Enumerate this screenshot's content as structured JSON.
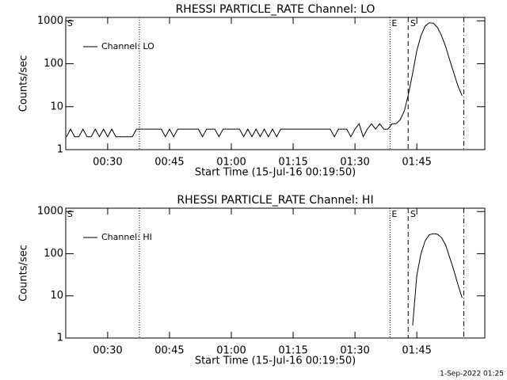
{
  "chart_data": [
    {
      "type": "line",
      "title": "RHESSI PARTICLE_RATE Channel: LO",
      "xlabel": "Start Time (15-Jul-16 00:19:50)",
      "ylabel": "Counts/sec",
      "log_y": true,
      "legend": "upper left",
      "xlim": [
        19.83,
        121.5
      ],
      "ylim": [
        1,
        1200
      ],
      "xticks": [
        {
          "value": 30,
          "label": "00:30"
        },
        {
          "value": 45,
          "label": "00:45"
        },
        {
          "value": 60,
          "label": "01:00"
        },
        {
          "value": 75,
          "label": "01:15"
        },
        {
          "value": 90,
          "label": "01:30"
        },
        {
          "value": 105,
          "label": "01:45"
        }
      ],
      "yticks": [
        1,
        10,
        100,
        1000
      ],
      "event_lines": [
        {
          "x": 37.7,
          "style": "dotted"
        },
        {
          "x": 98.5,
          "style": "dotted"
        },
        {
          "x": 102.9,
          "style": "dashed"
        },
        {
          "x": 116.4,
          "style": "dashdot"
        }
      ],
      "event_labels": [
        {
          "x": 20.2,
          "text": "S"
        },
        {
          "x": 98.9,
          "text": "E"
        },
        {
          "x": 103.4,
          "text": "S"
        }
      ],
      "series": [
        {
          "name": "Channel: LO",
          "color": "#000000",
          "x": [
            20,
            21,
            22,
            23,
            24,
            25,
            26,
            27,
            28,
            29,
            30,
            31,
            32,
            33,
            34,
            35,
            36,
            37,
            38,
            39,
            40,
            41,
            42,
            43,
            44,
            45,
            46,
            47,
            48,
            49,
            50,
            51,
            52,
            53,
            54,
            55,
            56,
            57,
            58,
            59,
            60,
            61,
            62,
            63,
            64,
            65,
            66,
            67,
            68,
            69,
            70,
            71,
            72,
            73,
            74,
            75,
            76,
            77,
            78,
            79,
            80,
            81,
            82,
            83,
            84,
            85,
            86,
            87,
            88,
            89,
            90,
            91,
            92,
            93,
            94,
            95,
            96,
            97,
            98,
            99,
            100,
            101,
            102,
            103,
            104,
            105,
            106,
            107,
            108,
            109,
            110,
            111,
            112,
            113,
            114,
            115,
            116
          ],
          "values": [
            2,
            3,
            2,
            2,
            3,
            2,
            2,
            3,
            2,
            3,
            2,
            3,
            2,
            2,
            2,
            2,
            2,
            3,
            3,
            3,
            3,
            3,
            3,
            3,
            2,
            3,
            2,
            3,
            3,
            3,
            3,
            3,
            3,
            2,
            3,
            3,
            3,
            2,
            3,
            3,
            3,
            3,
            3,
            2,
            3,
            2,
            3,
            2,
            3,
            2,
            3,
            2,
            3,
            3,
            3,
            3,
            3,
            3,
            3,
            3,
            3,
            3,
            3,
            3,
            3,
            2,
            3,
            3,
            3,
            2,
            3,
            4,
            2,
            3,
            4,
            3,
            4,
            3,
            3,
            4,
            4,
            5,
            8,
            20,
            60,
            200,
            450,
            750,
            900,
            880,
            700,
            450,
            250,
            120,
            60,
            30,
            18
          ]
        }
      ]
    },
    {
      "type": "line",
      "title": "RHESSI PARTICLE_RATE Channel: HI",
      "xlabel": "Start Time (15-Jul-16 00:19:50)",
      "ylabel": "Counts/sec",
      "log_y": true,
      "legend": "upper left",
      "xlim": [
        19.83,
        121.5
      ],
      "ylim": [
        1,
        1200
      ],
      "xticks": [
        {
          "value": 30,
          "label": "00:30"
        },
        {
          "value": 45,
          "label": "00:45"
        },
        {
          "value": 60,
          "label": "01:00"
        },
        {
          "value": 75,
          "label": "01:15"
        },
        {
          "value": 90,
          "label": "01:30"
        },
        {
          "value": 105,
          "label": "01:45"
        }
      ],
      "yticks": [
        1,
        10,
        100,
        1000
      ],
      "event_lines": [
        {
          "x": 37.7,
          "style": "dotted"
        },
        {
          "x": 98.5,
          "style": "dotted"
        },
        {
          "x": 102.9,
          "style": "dashed"
        },
        {
          "x": 116.4,
          "style": "dashdot"
        }
      ],
      "event_labels": [
        {
          "x": 20.2,
          "text": "S"
        },
        {
          "x": 98.9,
          "text": "E"
        },
        {
          "x": 103.4,
          "text": "S"
        }
      ],
      "series": [
        {
          "name": "Channel: HI",
          "color": "#000000",
          "x": [
            104,
            105,
            106,
            107,
            108,
            109,
            110,
            111,
            112,
            113,
            114,
            115,
            116
          ],
          "values": [
            2,
            30,
            100,
            200,
            280,
            300,
            290,
            240,
            160,
            80,
            40,
            18,
            9
          ]
        }
      ]
    }
  ],
  "footer": "1-Sep-2022 01:25"
}
